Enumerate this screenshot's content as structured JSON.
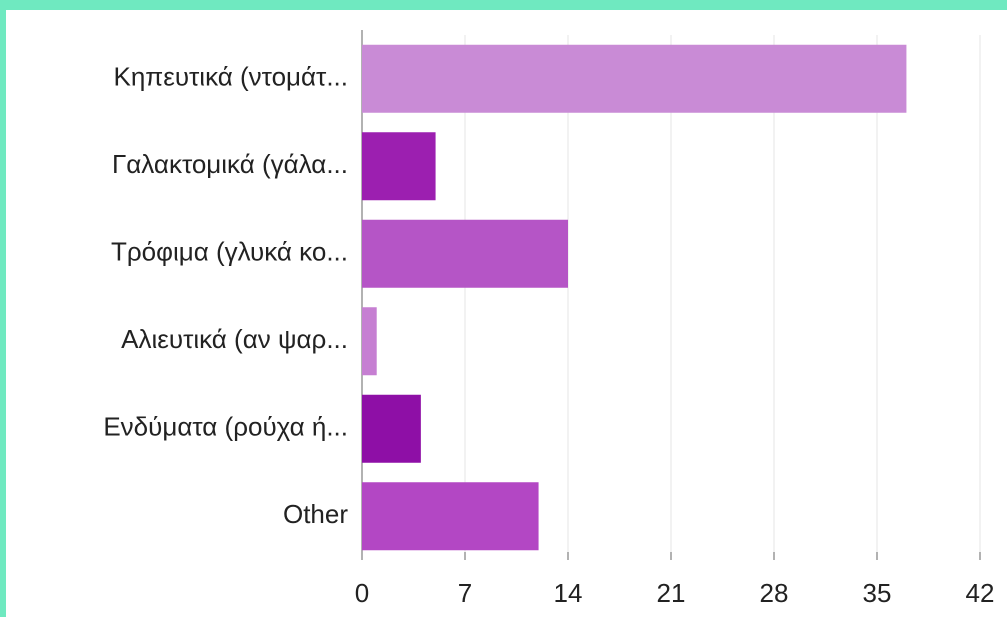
{
  "chart_data": {
    "type": "bar",
    "categories": [
      "Κηπευτικά (ντομάτ...",
      "Γαλακτομικά (γάλα...",
      "Τρόφιμα (γλυκά κο...",
      "Αλιευτικά (αν ψαρ...",
      "Ενδύματα (ρούχα ή...",
      "Other"
    ],
    "values": [
      37,
      5,
      14,
      1,
      4,
      12
    ],
    "colors": [
      "#c98bd6",
      "#9c1fb0",
      "#b555c6",
      "#c67fd2",
      "#8e0fa6",
      "#b347c4"
    ],
    "xlim": [
      0,
      42
    ],
    "xticks": [
      0,
      7,
      14,
      21,
      28,
      35,
      42
    ],
    "grid": true
  }
}
